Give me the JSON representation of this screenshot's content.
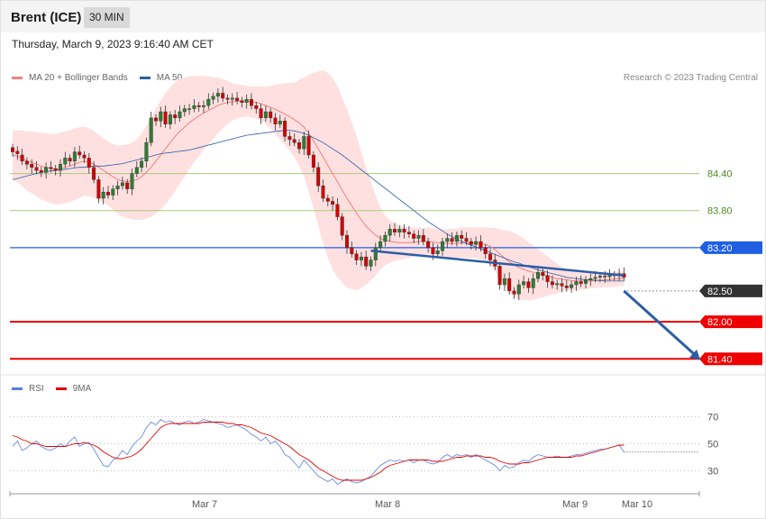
{
  "header": {
    "title": "Brent (ICE)",
    "timeframe": "30 MIN"
  },
  "timestamp": "Thursday, March 9, 2023 9:16:40 AM CET",
  "legend_main": [
    {
      "label": "MA 20 + Bollinger Bands",
      "color": "#f08080"
    },
    {
      "label": "MA 50",
      "color": "#2b5ea7"
    }
  ],
  "credit": "Research © 2023 Trading Central",
  "legend_rsi": [
    {
      "label": "RSI",
      "color": "#5b7fe0"
    },
    {
      "label": "9MA",
      "color": "#e00000"
    }
  ],
  "colors": {
    "up": "#2e7d32",
    "down": "#d40000",
    "band": "#ffe0e0",
    "ma20": "#f08080",
    "ma50": "#2b5ea7"
  },
  "chart_data": [
    {
      "type": "candlestick",
      "y_range": [
        81.2,
        85.75
      ],
      "x_labels": [
        "Mar 7",
        "Mar 8",
        "Mar 9",
        "Mar 10"
      ],
      "levels": [
        {
          "value": 84.4,
          "label": "84.40",
          "color": "#a7c97e",
          "style": "thin",
          "label_color": "#4c8a1e",
          "tag": false
        },
        {
          "value": 83.8,
          "label": "83.80",
          "color": "#a7c97e",
          "style": "thin",
          "label_color": "#4c8a1e",
          "tag": false
        },
        {
          "value": 83.2,
          "label": "83.20",
          "color": "#1f5fe0",
          "style": "medium",
          "label_color": "#ffffff",
          "tag": true
        },
        {
          "value": 82.5,
          "label": "82.50",
          "color": "#333333",
          "style": "dotted",
          "label_color": "#ffffff",
          "tag": true
        },
        {
          "value": 82.0,
          "label": "82.00",
          "color": "#ee0000",
          "style": "thick",
          "label_color": "#ffffff",
          "tag": true
        },
        {
          "value": 81.4,
          "label": "81.40",
          "color": "#ee0000",
          "style": "thick",
          "label_color": "#ffffff",
          "tag": true
        }
      ],
      "closes": [
        84.75,
        84.72,
        84.6,
        84.55,
        84.5,
        84.45,
        84.42,
        84.5,
        84.48,
        84.45,
        84.55,
        84.65,
        84.6,
        84.75,
        84.7,
        84.65,
        84.5,
        84.3,
        84.0,
        84.1,
        84.05,
        84.15,
        84.2,
        84.25,
        84.15,
        84.4,
        84.5,
        84.6,
        84.9,
        85.3,
        85.25,
        85.4,
        85.2,
        85.35,
        85.3,
        85.4,
        85.45,
        85.45,
        85.5,
        85.48,
        85.5,
        85.6,
        85.65,
        85.7,
        85.62,
        85.6,
        85.62,
        85.58,
        85.55,
        85.6,
        85.5,
        85.45,
        85.3,
        85.4,
        85.3,
        85.2,
        85.25,
        85.0,
        84.95,
        84.9,
        84.8,
        85.0,
        84.7,
        84.5,
        84.2,
        84.0,
        83.95,
        83.9,
        83.7,
        83.4,
        83.2,
        83.1,
        83.0,
        83.05,
        82.9,
        83.0,
        83.2,
        83.3,
        83.4,
        83.5,
        83.45,
        83.5,
        83.45,
        83.42,
        83.35,
        83.4,
        83.3,
        83.2,
        83.1,
        83.15,
        83.3,
        83.35,
        83.3,
        83.4,
        83.35,
        83.3,
        83.25,
        83.3,
        83.2,
        83.1,
        83.0,
        82.9,
        82.6,
        82.7,
        82.5,
        82.45,
        82.6,
        82.65,
        82.55,
        82.7,
        82.8,
        82.75,
        82.65,
        82.6,
        82.62,
        82.58,
        82.55,
        82.6,
        82.65,
        82.62,
        82.68,
        82.7,
        82.72,
        82.74,
        82.73,
        82.75,
        82.76,
        82.78,
        82.72
      ],
      "opens": [
        84.82,
        84.76,
        84.7,
        84.6,
        84.55,
        84.5,
        84.45,
        84.42,
        84.5,
        84.48,
        84.45,
        84.55,
        84.65,
        84.6,
        84.75,
        84.7,
        84.65,
        84.5,
        84.3,
        84.0,
        84.1,
        84.05,
        84.15,
        84.2,
        84.25,
        84.15,
        84.4,
        84.5,
        84.6,
        84.9,
        85.3,
        85.25,
        85.4,
        85.2,
        85.35,
        85.3,
        85.4,
        85.45,
        85.45,
        85.5,
        85.48,
        85.5,
        85.6,
        85.65,
        85.7,
        85.62,
        85.6,
        85.62,
        85.58,
        85.55,
        85.6,
        85.5,
        85.45,
        85.3,
        85.4,
        85.3,
        85.2,
        85.25,
        85.0,
        84.95,
        84.9,
        84.8,
        85.0,
        84.7,
        84.5,
        84.2,
        84.0,
        83.95,
        83.9,
        83.7,
        83.4,
        83.2,
        83.1,
        83.0,
        83.05,
        82.9,
        83.0,
        83.2,
        83.3,
        83.4,
        83.5,
        83.45,
        83.5,
        83.45,
        83.42,
        83.35,
        83.4,
        83.3,
        83.2,
        83.1,
        83.15,
        83.3,
        83.35,
        83.3,
        83.4,
        83.35,
        83.3,
        83.25,
        83.3,
        83.2,
        83.1,
        83.0,
        82.9,
        82.6,
        82.7,
        82.5,
        82.45,
        82.6,
        82.65,
        82.55,
        82.7,
        82.8,
        82.75,
        82.65,
        82.6,
        82.62,
        82.58,
        82.55,
        82.6,
        82.65,
        82.62,
        82.68,
        82.7,
        82.72,
        82.74,
        82.73,
        82.75,
        82.76,
        82.78
      ],
      "ma20": [
        84.7,
        84.68,
        84.65,
        84.6,
        84.58,
        84.55,
        84.52,
        84.5,
        84.48,
        84.47,
        84.48,
        84.5,
        84.52,
        84.55,
        84.58,
        84.6,
        84.58,
        84.55,
        84.5,
        84.45,
        84.4,
        84.35,
        84.3,
        84.28,
        84.27,
        84.28,
        84.3,
        84.35,
        84.42,
        84.5,
        84.6,
        84.7,
        84.8,
        84.9,
        85.0,
        85.08,
        85.15,
        85.22,
        85.28,
        85.33,
        85.38,
        85.42,
        85.46,
        85.5,
        85.53,
        85.55,
        85.56,
        85.57,
        85.57,
        85.57,
        85.56,
        85.55,
        85.53,
        85.5,
        85.47,
        85.44,
        85.4,
        85.36,
        85.32,
        85.27,
        85.22,
        85.15,
        85.05,
        84.93,
        84.8,
        84.67,
        84.53,
        84.4,
        84.27,
        84.13,
        84.0,
        83.88,
        83.76,
        83.65,
        83.55,
        83.47,
        83.4,
        83.35,
        83.32,
        83.3,
        83.29,
        83.28,
        83.28,
        83.28,
        83.29,
        83.3,
        83.3,
        83.3,
        83.29,
        83.28,
        83.27,
        83.27,
        83.27,
        83.27,
        83.28,
        83.28,
        83.28,
        83.28,
        83.27,
        83.25,
        83.22,
        83.17,
        83.1,
        83.03,
        82.97,
        82.92,
        82.88,
        82.85,
        82.82,
        82.8,
        82.78,
        82.76,
        82.74,
        82.72,
        82.7,
        82.69,
        82.68,
        82.67,
        82.66,
        82.66,
        82.66,
        82.66,
        82.67,
        82.67,
        82.68,
        82.68,
        82.69,
        82.7,
        82.7
      ],
      "bb_width": [
        0.4,
        0.42,
        0.45,
        0.48,
        0.5,
        0.52,
        0.54,
        0.55,
        0.56,
        0.57,
        0.58,
        0.58,
        0.58,
        0.58,
        0.57,
        0.56,
        0.55,
        0.54,
        0.53,
        0.52,
        0.52,
        0.53,
        0.55,
        0.58,
        0.6,
        0.62,
        0.65,
        0.7,
        0.75,
        0.8,
        0.85,
        0.88,
        0.9,
        0.9,
        0.88,
        0.85,
        0.8,
        0.75,
        0.7,
        0.65,
        0.6,
        0.55,
        0.5,
        0.45,
        0.4,
        0.35,
        0.3,
        0.28,
        0.26,
        0.25,
        0.25,
        0.26,
        0.28,
        0.3,
        0.35,
        0.4,
        0.45,
        0.5,
        0.55,
        0.6,
        0.7,
        0.8,
        0.95,
        1.1,
        1.25,
        1.4,
        1.5,
        1.55,
        1.55,
        1.5,
        1.45,
        1.35,
        1.25,
        1.1,
        0.95,
        0.8,
        0.65,
        0.5,
        0.4,
        0.35,
        0.3,
        0.28,
        0.26,
        0.25,
        0.24,
        0.23,
        0.22,
        0.22,
        0.22,
        0.22,
        0.23,
        0.23,
        0.24,
        0.24,
        0.25,
        0.25,
        0.25,
        0.25,
        0.26,
        0.28,
        0.3,
        0.35,
        0.4,
        0.45,
        0.5,
        0.52,
        0.52,
        0.5,
        0.47,
        0.44,
        0.4,
        0.36,
        0.32,
        0.28,
        0.24,
        0.2,
        0.18,
        0.16,
        0.15,
        0.14,
        0.13,
        0.12,
        0.12,
        0.12,
        0.12,
        0.12,
        0.12,
        0.12,
        0.12
      ],
      "ma50": [
        84.3,
        84.32,
        84.34,
        84.36,
        84.38,
        84.4,
        84.42,
        84.43,
        84.44,
        84.45,
        84.46,
        84.47,
        84.48,
        84.49,
        84.5,
        84.5,
        84.51,
        84.52,
        84.52,
        84.52,
        84.53,
        84.54,
        84.55,
        84.56,
        84.58,
        84.6,
        84.62,
        84.64,
        84.66,
        84.68,
        84.7,
        84.72,
        84.73,
        84.74,
        84.75,
        84.76,
        84.77,
        84.78,
        84.8,
        84.82,
        84.84,
        84.86,
        84.88,
        84.9,
        84.92,
        84.94,
        84.96,
        84.98,
        85.0,
        85.02,
        85.03,
        85.04,
        85.05,
        85.06,
        85.07,
        85.08,
        85.09,
        85.1,
        85.1,
        85.09,
        85.07,
        85.05,
        85.02,
        84.98,
        84.94,
        84.9,
        84.85,
        84.8,
        84.75,
        84.7,
        84.64,
        84.58,
        84.52,
        84.46,
        84.4,
        84.34,
        84.28,
        84.22,
        84.16,
        84.1,
        84.04,
        83.98,
        83.92,
        83.86,
        83.8,
        83.74,
        83.68,
        83.62,
        83.57,
        83.52,
        83.47,
        83.42,
        83.38,
        83.34,
        83.3,
        83.27,
        83.24,
        83.21,
        83.18,
        83.15,
        83.12,
        83.09,
        83.06,
        83.03,
        83.0,
        82.97,
        82.95,
        82.92,
        82.89,
        82.87,
        82.84,
        82.82,
        82.8,
        82.78,
        82.76,
        82.74,
        82.72,
        82.71,
        82.7,
        82.69,
        82.68,
        82.68,
        82.67,
        82.67,
        82.66,
        82.66,
        82.66,
        82.66,
        82.66
      ],
      "trend_line": {
        "x_start_index": 75,
        "y_start": 83.15,
        "x_end_index": 128,
        "y_end": 82.75
      },
      "projection_arrow": {
        "x_start_index": 128,
        "y_start": 82.5,
        "x_end_index": 144,
        "y_end": 81.38
      }
    },
    {
      "type": "line",
      "name": "RSI",
      "y_range": [
        15,
        85
      ],
      "levels": [
        70,
        50,
        30
      ],
      "rsi": [
        48,
        52,
        45,
        47,
        50,
        52,
        48,
        46,
        45,
        47,
        50,
        48,
        52,
        55,
        48,
        50,
        51,
        46,
        40,
        34,
        33,
        38,
        40,
        45,
        42,
        48,
        52,
        55,
        62,
        66,
        64,
        68,
        66,
        67,
        65,
        64,
        66,
        67,
        65,
        66,
        68,
        67,
        66,
        65,
        64,
        62,
        63,
        64,
        62,
        60,
        57,
        55,
        52,
        55,
        50,
        52,
        48,
        42,
        40,
        36,
        32,
        38,
        34,
        30,
        26,
        24,
        22,
        24,
        20,
        22,
        24,
        22,
        21,
        22,
        24,
        26,
        30,
        34,
        36,
        38,
        37,
        38,
        37,
        38,
        36,
        38,
        38,
        36,
        35,
        36,
        40,
        42,
        40,
        42,
        41,
        42,
        40,
        42,
        40,
        38,
        36,
        34,
        30,
        34,
        32,
        33,
        36,
        38,
        37,
        40,
        42,
        41,
        40,
        40,
        41,
        40,
        40,
        41,
        42,
        42,
        43,
        44,
        45,
        46,
        46,
        47,
        48,
        49,
        44
      ],
      "ma9": [
        56,
        55,
        53,
        52,
        50,
        50,
        49,
        48,
        48,
        48,
        48,
        48,
        49,
        50,
        50,
        51,
        50,
        49,
        47,
        44,
        42,
        40,
        39,
        39,
        40,
        41,
        43,
        46,
        50,
        54,
        58,
        62,
        64,
        65,
        65,
        65,
        65,
        65,
        65,
        65,
        66,
        66,
        66,
        66,
        66,
        65,
        65,
        64,
        64,
        63,
        62,
        60,
        58,
        57,
        56,
        54,
        52,
        50,
        48,
        45,
        42,
        40,
        38,
        35,
        32,
        30,
        28,
        26,
        24,
        23,
        23,
        23,
        23,
        23,
        24,
        25,
        27,
        29,
        32,
        34,
        35,
        36,
        37,
        38,
        38,
        38,
        38,
        38,
        37,
        37,
        37,
        38,
        39,
        40,
        40,
        41,
        41,
        41,
        41,
        40,
        40,
        39,
        37,
        36,
        35,
        35,
        35,
        36,
        36,
        37,
        38,
        39,
        40,
        40,
        40,
        40,
        40,
        40,
        41,
        41,
        42,
        43,
        44,
        45,
        46,
        47,
        48,
        49,
        49
      ]
    }
  ]
}
